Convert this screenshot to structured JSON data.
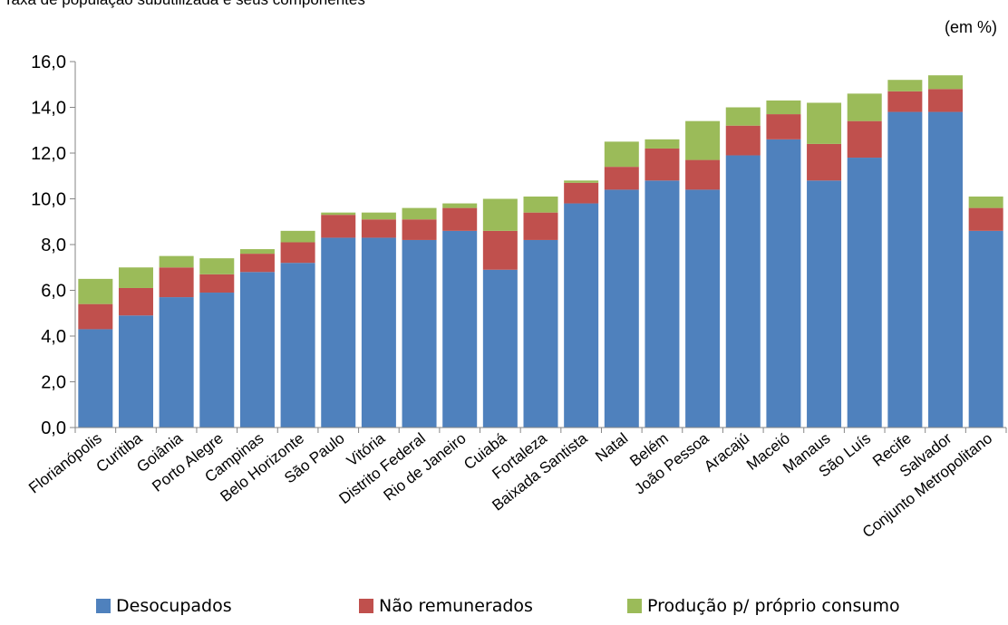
{
  "header": {
    "title": "Taxa de população subutilizada e seus componentes",
    "unit": "(em %)"
  },
  "colors": {
    "Desocupados": "#4F81BD",
    "Não remunerados": "#C0504D",
    "Produção p/ próprio consumo": "#9BBB59"
  },
  "chart_data": {
    "type": "bar",
    "stacked": true,
    "categories": [
      "Florianópolis",
      "Curitiba",
      "Goiânia",
      "Porto Alegre",
      "Campinas",
      "Belo Horizonte",
      "São Paulo",
      "Vitória",
      "Distrito Federal",
      "Rio de Janeiro",
      "Cuiabá",
      "Fortaleza",
      "Baixada Santista",
      "Natal",
      "Belém",
      "João Pessoa",
      "Aracajú",
      "Maceió",
      "Manaus",
      "São Luís",
      "Recife",
      "Salvador",
      "Conjunto Metropolitano"
    ],
    "series": [
      {
        "name": "Desocupados",
        "values": [
          4.3,
          4.9,
          5.7,
          5.9,
          6.8,
          7.2,
          8.3,
          8.3,
          8.2,
          8.6,
          6.9,
          8.2,
          9.8,
          10.4,
          10.8,
          10.4,
          11.9,
          12.6,
          10.8,
          11.8,
          13.8,
          13.8,
          8.6
        ]
      },
      {
        "name": "Não remunerados",
        "values": [
          1.1,
          1.2,
          1.3,
          0.8,
          0.8,
          0.9,
          1.0,
          0.8,
          0.9,
          1.0,
          1.7,
          1.2,
          0.9,
          1.0,
          1.4,
          1.3,
          1.3,
          1.1,
          1.6,
          1.6,
          0.9,
          1.0,
          1.0
        ]
      },
      {
        "name": "Produção p/ próprio consumo",
        "values": [
          1.1,
          0.9,
          0.5,
          0.7,
          0.2,
          0.5,
          0.1,
          0.3,
          0.5,
          0.2,
          1.4,
          0.7,
          0.1,
          1.1,
          0.4,
          1.7,
          0.8,
          0.6,
          1.8,
          1.2,
          0.5,
          0.6,
          0.5
        ]
      }
    ],
    "ylim": [
      0,
      16
    ],
    "yticks": [
      "0,0",
      "2,0",
      "4,0",
      "6,0",
      "8,0",
      "10,0",
      "12,0",
      "14,0",
      "16,0"
    ],
    "ylabel": "",
    "xlabel": "",
    "grid": false,
    "legend": "bottom"
  },
  "legend": {
    "items": [
      "Desocupados",
      "Não remunerados",
      "Produção p/ próprio consumo"
    ]
  }
}
